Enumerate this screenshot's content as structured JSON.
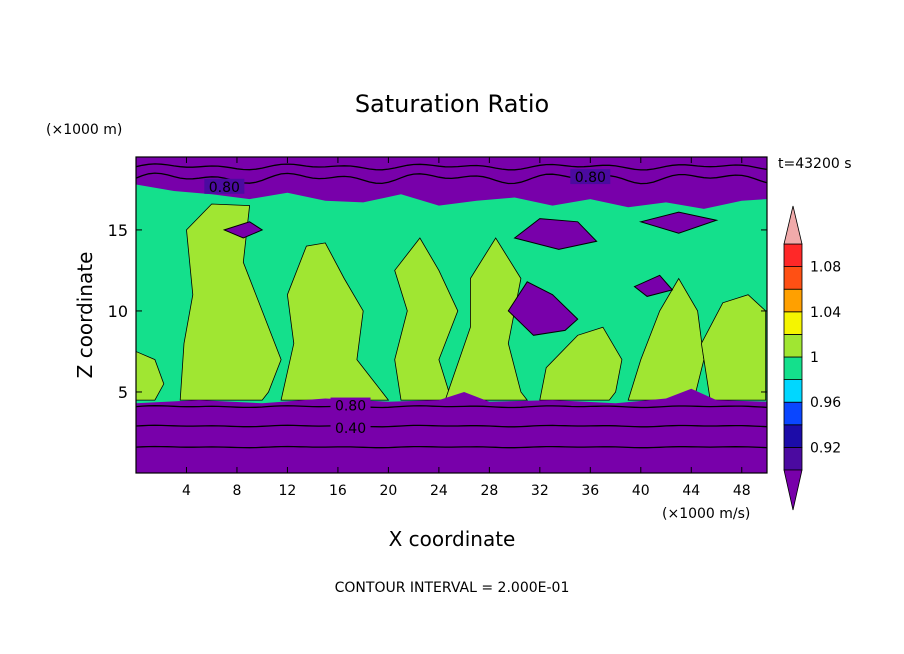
{
  "chart_data": {
    "type": "heatmap",
    "title": "Saturation Ratio",
    "xlabel": "X coordinate",
    "ylabel": "Z coordinate",
    "x_unit": "(×1000 m/s)",
    "y_unit": "(×1000 m)",
    "time_label": "t=43200 s",
    "contour_interval_label": "CONTOUR INTERVAL = 2.000E-01",
    "xlim": [
      0,
      50
    ],
    "ylim": [
      0,
      19.5
    ],
    "x_ticks": [
      4,
      8,
      12,
      16,
      20,
      24,
      28,
      32,
      36,
      40,
      44,
      48
    ],
    "y_ticks": [
      5,
      10,
      15
    ],
    "contour_labels": [
      {
        "text": "0.80",
        "x": 7,
        "z": 17.6
      },
      {
        "text": "0.80",
        "x": 36,
        "z": 18.2
      },
      {
        "text": "0.80",
        "x": 17,
        "z": 4.1
      },
      {
        "text": "0.40",
        "x": 17,
        "z": 2.7
      }
    ],
    "colorbar": {
      "tick_labels": [
        "1.08",
        "1.04",
        "1",
        "0.96",
        "0.92"
      ],
      "levels": [
        0.9,
        0.92,
        0.94,
        0.96,
        0.98,
        1.0,
        1.02,
        1.04,
        1.06,
        1.08,
        1.1
      ],
      "colors": [
        "#4b0aa0",
        "#1c0ca8",
        "#0a46ff",
        "#00d7ff",
        "#14e08c",
        "#a0e632",
        "#f5f500",
        "#ffa000",
        "#ff5014",
        "#ff2828"
      ],
      "under_color": "#7800aa",
      "over_color": "#f0aaaa"
    },
    "regions": {
      "lower_layer_top_z": 4.5,
      "upper_layer_bottom_z": 17.5,
      "background_value": 0.99,
      "moist_value": 1.01,
      "dry_value": 0.5
    }
  }
}
